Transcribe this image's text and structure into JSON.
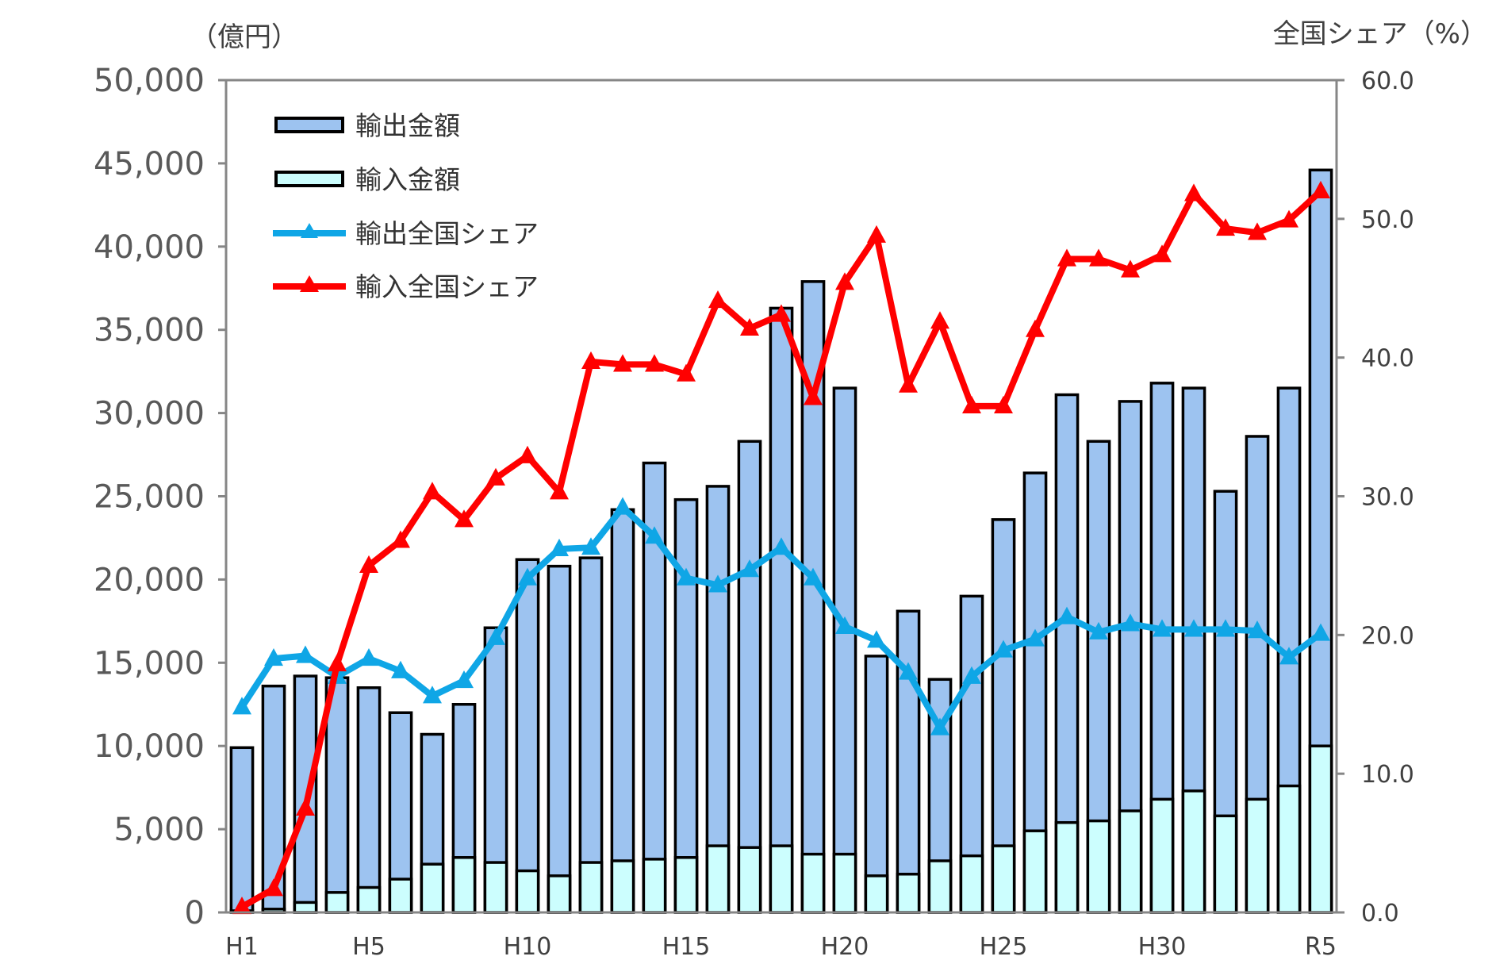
{
  "chart_data": {
    "type": "bar",
    "y_left_label": "（億円）",
    "y_right_label": "全国シェア（%）",
    "y_left_range": [
      0,
      50000
    ],
    "y_right_range": [
      0,
      60
    ],
    "y_left_ticks": [
      "0",
      "5,000",
      "10,000",
      "15,000",
      "20,000",
      "25,000",
      "30,000",
      "35,000",
      "40,000",
      "45,000",
      "50,000"
    ],
    "y_right_ticks": [
      "0.0",
      "10.0",
      "20.0",
      "30.0",
      "40.0",
      "50.0",
      "60.0"
    ],
    "x_tick_labels": [
      "H1",
      "H5",
      "H10",
      "H15",
      "H20",
      "H25",
      "H30",
      "R5"
    ],
    "legend_position": "top-left",
    "grid": false,
    "series": [
      {
        "name": "輸出金額",
        "kind": "bar",
        "axis": "left",
        "color": "#9dc3f0",
        "values": [
          9900,
          13600,
          14200,
          14100,
          13500,
          12000,
          10700,
          12500,
          17100,
          21200,
          20800,
          21300,
          24200,
          27000,
          24800,
          25600,
          28300,
          36300,
          37900,
          31500,
          15400,
          18100,
          14000,
          19000,
          23600,
          26400,
          31100,
          28300,
          30700,
          31800,
          31500,
          25300,
          28600,
          31500,
          44600
        ]
      },
      {
        "name": "輸入金額",
        "kind": "bar",
        "axis": "left",
        "color": "#ccfefe",
        "values": [
          100,
          200,
          600,
          1200,
          1500,
          2000,
          2900,
          3300,
          3000,
          2500,
          2200,
          3000,
          3100,
          3200,
          3300,
          4000,
          3900,
          4000,
          3500,
          3500,
          2200,
          2300,
          3100,
          3400,
          4000,
          4900,
          5400,
          5500,
          6100,
          6800,
          7300,
          5800,
          6800,
          7600,
          10000
        ]
      },
      {
        "name": "輸出全国シェア",
        "kind": "line",
        "axis": "right",
        "color": "#0fa6e6",
        "values": [
          14.8,
          18.3,
          18.5,
          17.0,
          18.3,
          17.4,
          15.6,
          16.7,
          19.8,
          24.1,
          26.2,
          26.3,
          29.2,
          27.1,
          24.1,
          23.6,
          24.7,
          26.3,
          24.1,
          20.6,
          19.6,
          17.3,
          13.3,
          17.0,
          18.9,
          19.7,
          21.3,
          20.2,
          20.8,
          20.4,
          20.4,
          20.4,
          20.3,
          18.4,
          20.1
        ]
      },
      {
        "name": "輸入全国シェア",
        "kind": "line",
        "axis": "right",
        "color": "#ff0000",
        "values": [
          0.4,
          1.7,
          7.5,
          17.9,
          25.0,
          26.8,
          30.3,
          28.3,
          31.3,
          32.9,
          30.3,
          39.7,
          39.5,
          39.5,
          38.8,
          44.1,
          42.1,
          43.1,
          37.1,
          45.4,
          48.8,
          38.0,
          42.6,
          36.5,
          36.5,
          42.0,
          47.1,
          47.1,
          46.3,
          47.4,
          51.8,
          49.3,
          49.0,
          49.9,
          52.0
        ]
      }
    ]
  }
}
